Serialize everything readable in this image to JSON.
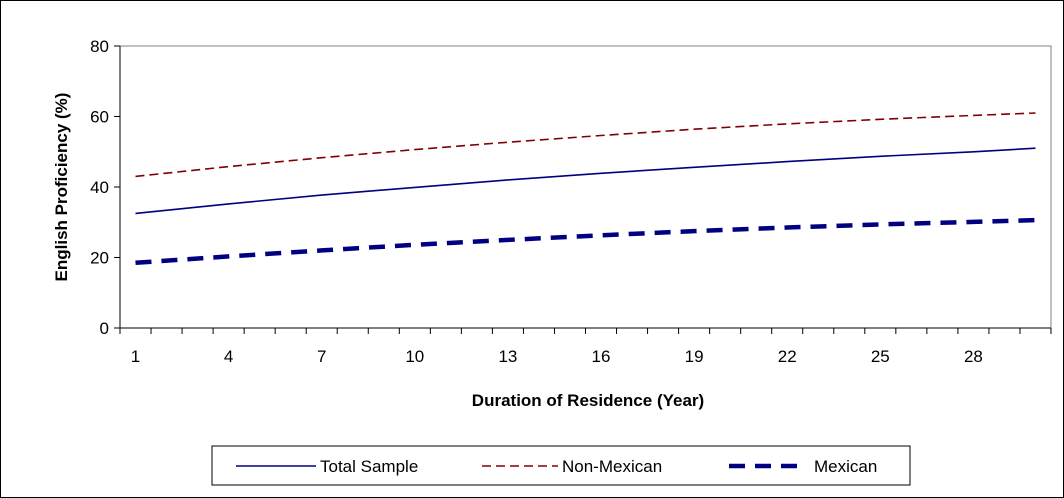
{
  "chart_data": {
    "type": "line",
    "title": "",
    "xlabel": "Duration of Residence (Year)",
    "ylabel": "English Proficiency (%)",
    "ylim": [
      0,
      80
    ],
    "yticks": [
      0,
      20,
      40,
      60,
      80
    ],
    "xlim": [
      1,
      30
    ],
    "xticks": [
      1,
      4,
      7,
      10,
      13,
      16,
      19,
      22,
      25,
      28
    ],
    "grid": false,
    "legend_position": "bottom",
    "x": [
      1,
      4,
      7,
      10,
      13,
      16,
      19,
      22,
      25,
      28,
      30
    ],
    "series": [
      {
        "name": "Total Sample",
        "color": "#000080",
        "style": "solid",
        "values": [
          32.5,
          35.2,
          37.7,
          39.9,
          42.0,
          43.9,
          45.6,
          47.2,
          48.7,
          50.0,
          51.0
        ]
      },
      {
        "name": "Non-Mexican",
        "color": "#800000",
        "style": "dashed",
        "values": [
          43.0,
          45.8,
          48.3,
          50.6,
          52.7,
          54.6,
          56.4,
          57.9,
          59.2,
          60.3,
          61.0
        ]
      },
      {
        "name": "Mexican",
        "color": "#000080",
        "style": "thick-dashed",
        "values": [
          18.5,
          20.3,
          22.0,
          23.6,
          25.0,
          26.3,
          27.5,
          28.5,
          29.4,
          30.1,
          30.6
        ]
      }
    ]
  }
}
